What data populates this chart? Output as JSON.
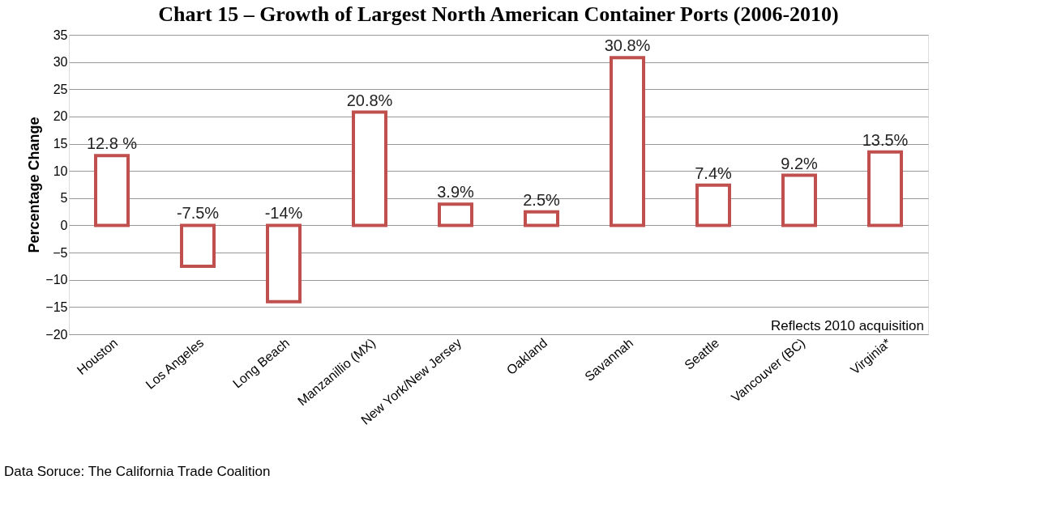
{
  "chart_data": {
    "type": "bar",
    "title": "Chart 15 – Growth of Largest North American Container Ports (2006-2010)",
    "ylabel": "Percentage Change",
    "categories": [
      "Houston",
      "Los Angeles",
      "Long Beach",
      "Manzanillio (MX)",
      "New York/New Jersey",
      "Oakland",
      "Savannah",
      "Seattle",
      "Vancouver (BC)",
      "Virginia*"
    ],
    "values": [
      12.8,
      -7.5,
      -14,
      20.8,
      3.9,
      2.5,
      30.8,
      7.4,
      9.2,
      13.5
    ],
    "value_labels": [
      "12.8 %",
      "-7.5%",
      "-14%",
      "20.8%",
      "3.9%",
      "2.5%",
      "30.8%",
      "7.4%",
      "9.2%",
      "13.5%"
    ],
    "color": "#c0504d",
    "ylim": [
      -20,
      35
    ],
    "yticks": [
      -20,
      -15,
      -10,
      -5,
      0,
      5,
      10,
      15,
      20,
      25,
      30,
      35
    ],
    "grid": "y",
    "annotations": [
      "Reflects 2010 acquisition",
      "Data Soruce:  The California Trade Coalition"
    ]
  }
}
